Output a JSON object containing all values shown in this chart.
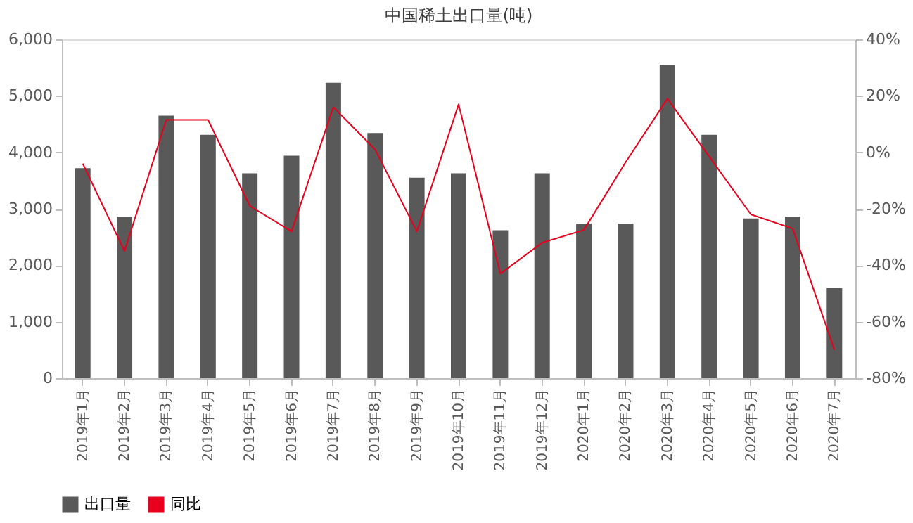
{
  "chart_data": {
    "type": "bar",
    "title": "中国稀土出口量(吨)",
    "categories": [
      "2019年1月",
      "2019年2月",
      "2019年3月",
      "2019年4月",
      "2019年5月",
      "2019年6月",
      "2019年7月",
      "2019年8月",
      "2019年9月",
      "2019年10月",
      "2019年11月",
      "2019年12月",
      "2020年1月",
      "2020年2月",
      "2020年3月",
      "2020年4月",
      "2020年5月",
      "2020年6月",
      "2020年7月"
    ],
    "series": [
      {
        "name": "出口量",
        "color": "#595959",
        "values": [
          3720,
          2860,
          4650,
          4310,
          3630,
          3940,
          5230,
          4340,
          3550,
          3630,
          2620,
          3630,
          2740,
          2740,
          5550,
          4310,
          2830,
          2860,
          1600
        ]
      },
      {
        "name": "同比",
        "type": "line",
        "axis": "y2",
        "color": "#e8001c",
        "values": [
          -4,
          -35,
          11.5,
          11.5,
          -19,
          -28,
          16,
          1,
          -28,
          17,
          -43,
          -32,
          -27.5,
          -3.5,
          19,
          -1.5,
          -22,
          -27,
          -70
        ]
      }
    ],
    "ylim": [
      0,
      6000
    ],
    "yticks": [
      0,
      {
        "value": 1000,
        "label": "1,000"
      },
      {
        "value": 2000,
        "label": "2,000"
      },
      {
        "value": 3000,
        "label": "3,000"
      },
      {
        "value": 4000,
        "label": "4,000"
      },
      {
        "value": 5000,
        "label": "5,000"
      },
      {
        "value": 6000,
        "label": "6,000"
      }
    ],
    "y2lim": [
      -80,
      40
    ],
    "y2ticks": [
      {
        "value": -80,
        "label": "-80%"
      },
      {
        "value": -60,
        "label": "-60%"
      },
      {
        "value": -40,
        "label": "-40%"
      },
      {
        "value": -20,
        "label": "-20%"
      },
      {
        "value": 0,
        "label": "0%"
      },
      {
        "value": 20,
        "label": "20%"
      },
      {
        "value": 40,
        "label": "40%"
      }
    ],
    "grid": false,
    "legend": "bottom",
    "marker": "none",
    "line_style": "solid"
  }
}
